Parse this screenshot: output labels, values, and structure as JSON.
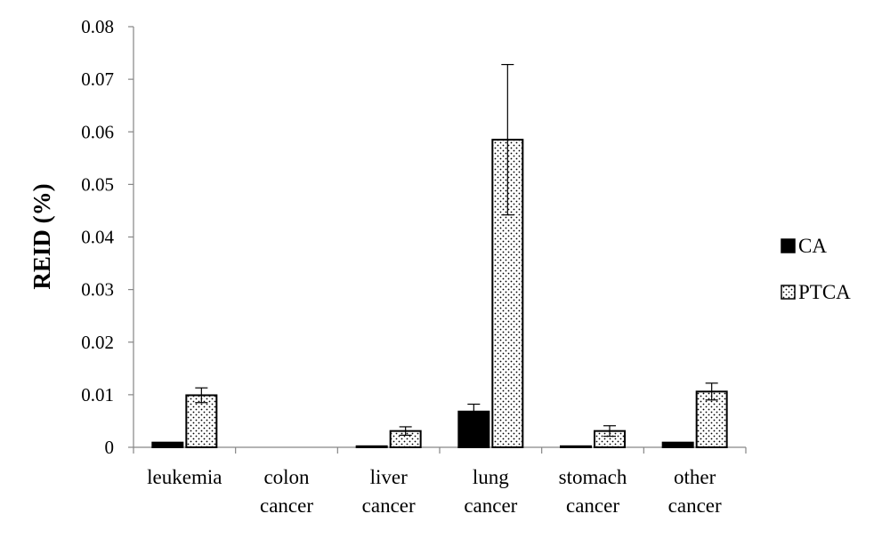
{
  "chart_data": {
    "type": "bar",
    "title": "",
    "xlabel": "",
    "ylabel": "REID (%)",
    "ylim": [
      0,
      0.08
    ],
    "yticks": [
      "0",
      "0.01",
      "0.02",
      "0.03",
      "0.04",
      "0.05",
      "0.06",
      "0.07",
      "0.08"
    ],
    "grid": false,
    "legend_position": "right",
    "categories": [
      [
        "leukemia"
      ],
      [
        "colon",
        "cancer"
      ],
      [
        "liver",
        "cancer"
      ],
      [
        "lung",
        "cancer"
      ],
      [
        "stomach",
        "cancer"
      ],
      [
        "other",
        "cancer"
      ]
    ],
    "series": [
      {
        "name": "CA",
        "fill": "solid-black",
        "values": [
          0.0009,
          0.0,
          0.0002,
          0.0068,
          0.0002,
          0.0009
        ],
        "errors": [
          0,
          0,
          0,
          0.0014,
          0,
          0
        ]
      },
      {
        "name": "PTCA",
        "fill": "dotted",
        "values": [
          0.0099,
          0.0,
          0.0031,
          0.0585,
          0.0031,
          0.0106
        ],
        "errors": [
          0.0014,
          0,
          0.0008,
          0.0143,
          0.001,
          0.0016
        ]
      }
    ]
  }
}
